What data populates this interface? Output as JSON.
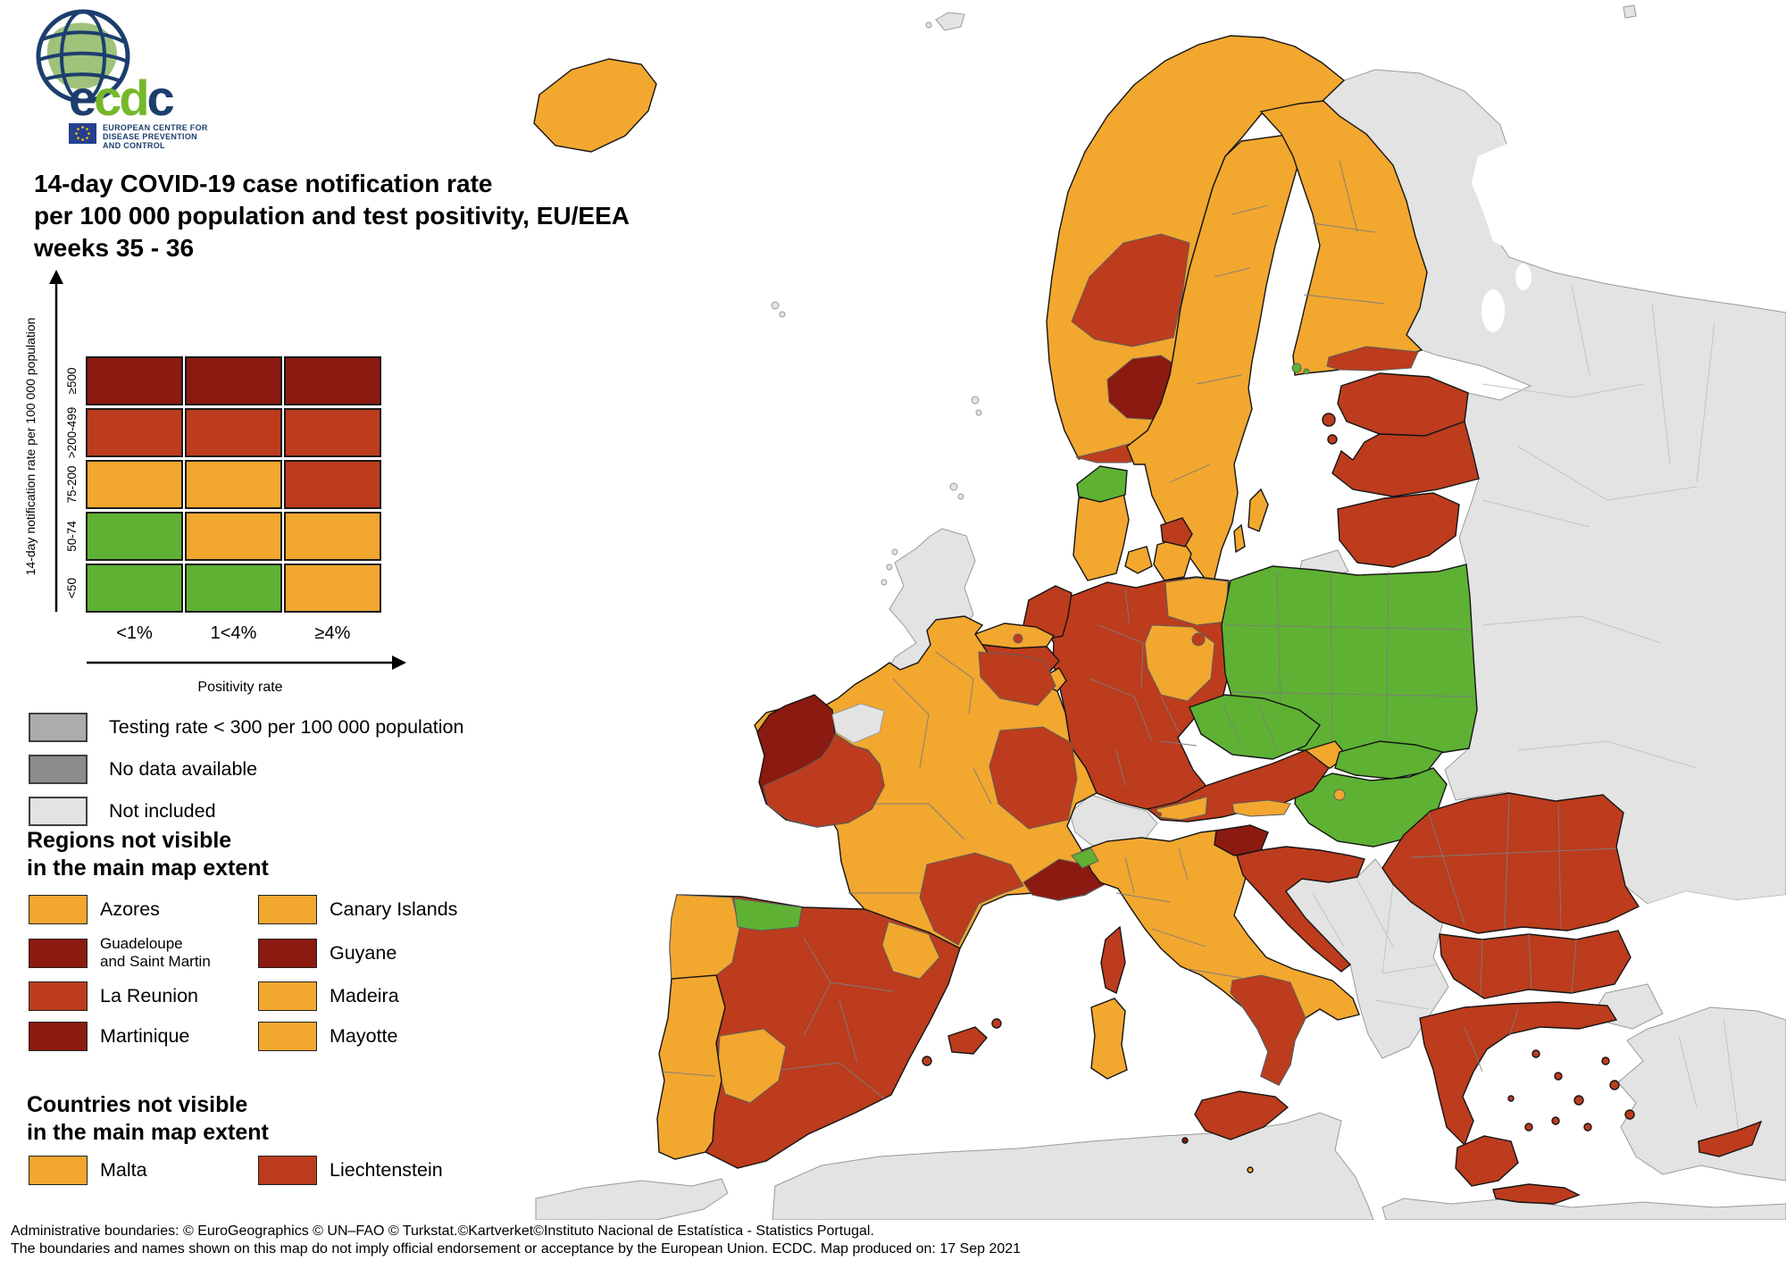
{
  "logo": {
    "letters": [
      "e",
      "c",
      "d",
      "c"
    ],
    "caption1": "EUROPEAN CENTRE FOR",
    "caption2": "DISEASE PREVENTION",
    "caption3": "AND CONTROL"
  },
  "title": {
    "line1": "14-day COVID-19 case notification rate",
    "line2": "per 100 000 population and test positivity, EU/EEA",
    "line3": "weeks 35 - 36"
  },
  "palette": {
    "dark_red": "#8b1a10",
    "red_orange": "#bc3c1d",
    "orange": "#f2a72f",
    "green": "#5eb133",
    "gray_low_testing": "#acacac",
    "gray_no_data": "#8c8c8c",
    "not_included": "#e3e3e3"
  },
  "matrix": {
    "y_axis_label": "14-day notification rate per 100 000 population",
    "x_axis_label": "Positivity rate",
    "row_labels": [
      "≥500",
      ">200-499",
      "75-200",
      "50-74",
      "<50"
    ],
    "col_labels": [
      "<1%",
      "1<4%",
      "≥4%"
    ],
    "cells": [
      [
        "dark_red",
        "dark_red",
        "dark_red"
      ],
      [
        "red_orange",
        "red_orange",
        "red_orange"
      ],
      [
        "orange",
        "orange",
        "red_orange"
      ],
      [
        "green",
        "orange",
        "orange"
      ],
      [
        "green",
        "green",
        "orange"
      ]
    ]
  },
  "legend_items": [
    {
      "label": "Testing rate < 300 per 100 000 population",
      "color": "gray_low_testing"
    },
    {
      "label": "No data available",
      "color": "gray_no_data"
    },
    {
      "label": "Not included",
      "color": "not_included"
    }
  ],
  "regions_section": {
    "heading": "Regions not visible\nin the main map extent",
    "items": [
      {
        "label": "Azores",
        "color": "orange"
      },
      {
        "label": "Canary Islands",
        "color": "orange"
      },
      {
        "label": "Guadeloupe\nand Saint Martin",
        "color": "dark_red"
      },
      {
        "label": "Guyane",
        "color": "dark_red"
      },
      {
        "label": "La Reunion",
        "color": "red_orange"
      },
      {
        "label": "Madeira",
        "color": "orange"
      },
      {
        "label": "Martinique",
        "color": "dark_red"
      },
      {
        "label": "Mayotte",
        "color": "orange"
      }
    ]
  },
  "countries_section": {
    "heading": "Countries not visible\nin the main map extent",
    "items": [
      {
        "label": "Malta",
        "color": "orange"
      },
      {
        "label": "Liechtenstein",
        "color": "red_orange"
      }
    ]
  },
  "footer": {
    "line1": "Administrative boundaries: © EuroGeographics © UN–FAO © Turkstat.©Kartverket©Instituto Nacional de Estatística - Statistics Portugal.",
    "line2": "The boundaries and names shown on this map do not imply official endorsement or acceptance by the European Union. ECDC. Map produced on: 17 Sep 2021"
  },
  "map_regions": {
    "iceland": "orange",
    "norway": "orange",
    "norway_mid": "red_orange",
    "norway_oslo": "dark_red",
    "norway_south": "red_orange",
    "sweden": "orange",
    "gotland": "orange",
    "oland": "orange",
    "finland": "orange",
    "finland_south": "red_orange",
    "aland": "green",
    "estonia": "red_orange",
    "estonia_islands": "red_orange",
    "latvia": "red_orange",
    "lithuania": "red_orange",
    "kaliningrad": "not_included",
    "denmark_jutland": "orange",
    "denmark_north": "green",
    "denmark_funen": "orange",
    "denmark_zealand": "orange",
    "denmark_copenhagen": "red_orange",
    "bornholm": "red_orange",
    "germany": "red_orange",
    "germany_northeast": "orange",
    "germany_east": "orange",
    "berlin": "red_orange",
    "netherlands": "red_orange",
    "belgium_flanders": "orange",
    "belgium_wallonia": "red_orange",
    "brussels": "red_orange",
    "luxembourg": "orange",
    "liechtenstein": "red_orange",
    "france": "orange",
    "france_northeast": "red_orange",
    "france_rhone_alpes": "red_orange",
    "france_occitanie": "red_orange",
    "france_provence": "dark_red",
    "corsica": "red_orange",
    "spain": "red_orange",
    "spain_galicia": "orange",
    "spain_asturias": "green",
    "spain_aragon": "orange",
    "spain_extremadura": "orange",
    "mallorca": "red_orange",
    "ibiza": "red_orange",
    "menorca": "red_orange",
    "portugal": "orange",
    "italy": "orange",
    "italy_aosta": "green",
    "italy_south": "red_orange",
    "sicily": "red_orange",
    "sardinia": "orange",
    "pantelleria": "dark_red",
    "lampedusa": "orange",
    "slovenia": "dark_red",
    "croatia": "red_orange",
    "poland": "green",
    "czechia": "green",
    "slovakia_west": "orange",
    "slovakia_east": "green",
    "hungary": "green",
    "budapest": "orange",
    "austria": "red_orange",
    "austria_west": "orange",
    "austria_south": "orange",
    "switzerland": "not_included",
    "ireland": "dark_red",
    "ireland_southeast": "red_orange",
    "northern_ireland": "not_included",
    "uk": "not_included",
    "isle_of_man": "not_included",
    "romania": "red_orange",
    "bulgaria": "red_orange",
    "greece": "red_orange",
    "peloponnese": "red_orange",
    "aegean": "red_orange",
    "crete": "red_orange",
    "cyprus": "red_orange",
    "turkey": "not_included",
    "turkey_thrace": "not_included",
    "balkans": "not_included",
    "eastern_europe": "not_included",
    "north_africa_west": "not_included",
    "north_africa_central": "not_included",
    "north_africa_east": "not_included",
    "faroe": "not_included",
    "svalbard": "not_included",
    "shetland": "not_included",
    "orkney": "not_included",
    "hebrides": "not_included"
  }
}
